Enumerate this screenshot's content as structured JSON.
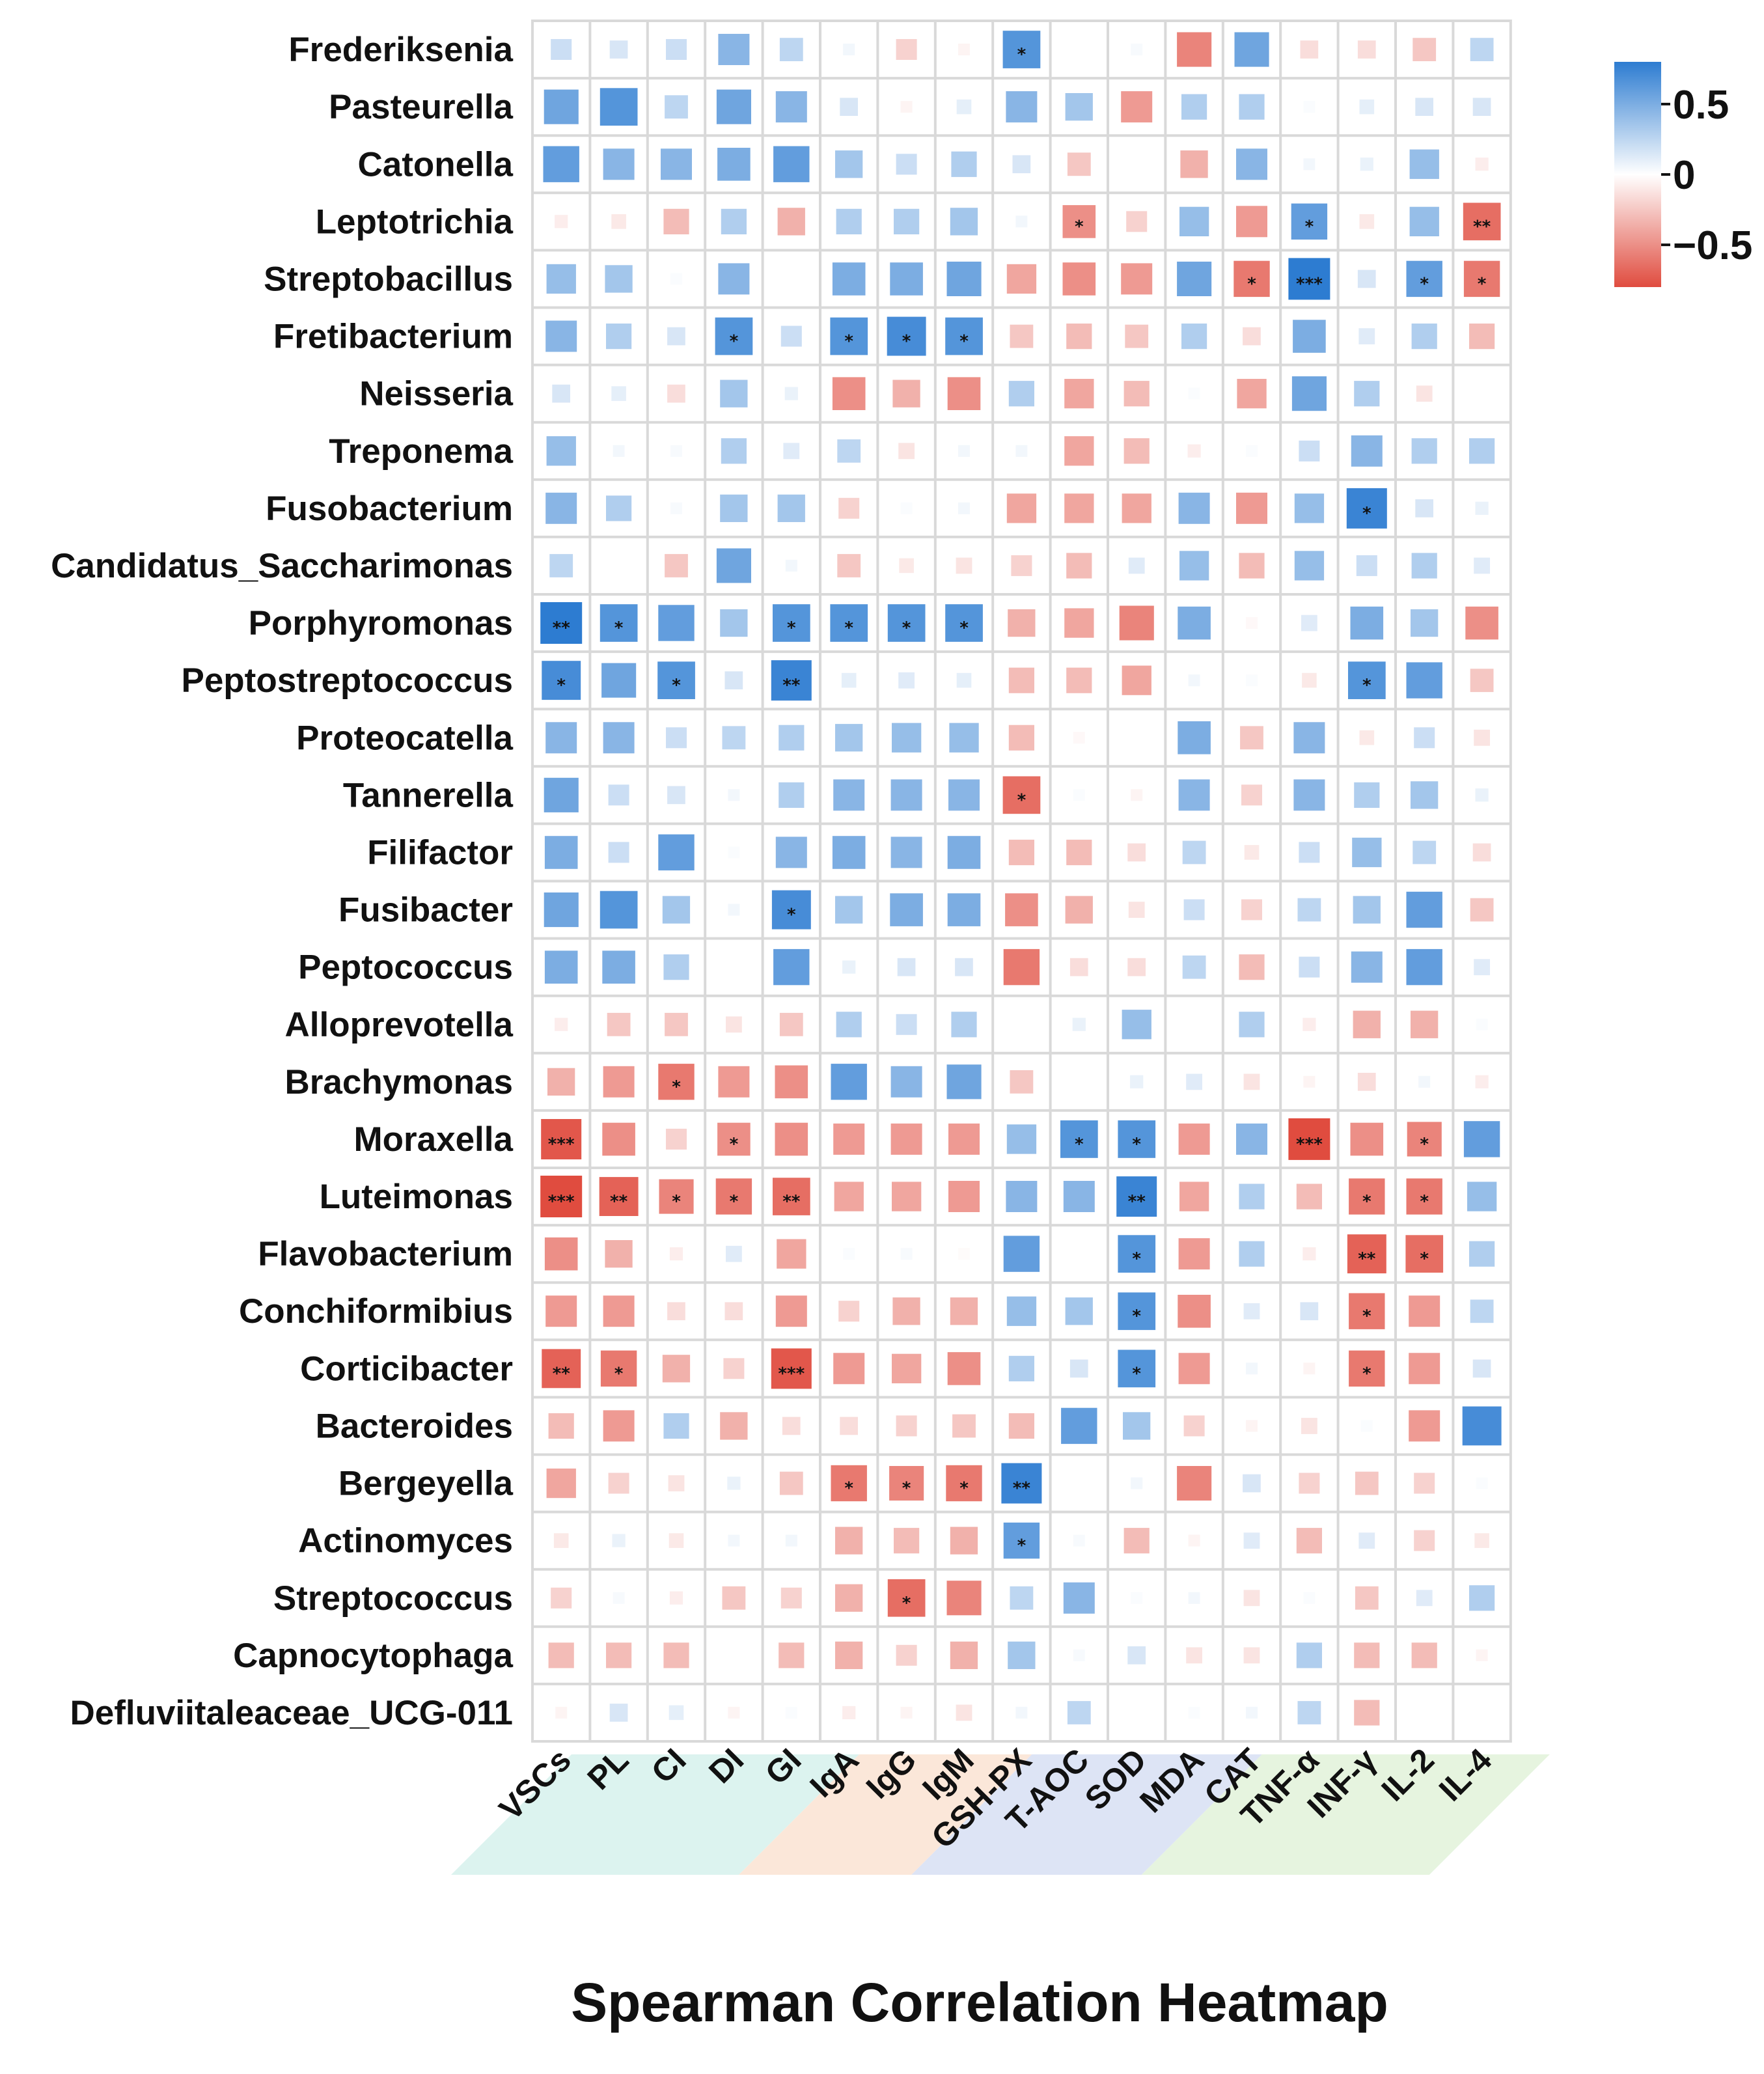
{
  "chart_data": {
    "type": "heatmap",
    "title": "Spearman Correlation Heatmap",
    "value_range": [
      -0.8,
      0.8
    ],
    "legend": {
      "ticks": [
        {
          "label": "0.5",
          "value": 0.5
        },
        {
          "label": "0",
          "value": 0
        },
        {
          "label": "−0.5",
          "value": -0.5
        }
      ],
      "colors": {
        "negative": "#e04c3f",
        "zero": "#ffffff",
        "positive": "#2d7cd1"
      }
    },
    "columns": [
      "VSCs",
      "PL",
      "CI",
      "DI",
      "GI",
      "IgA",
      "IgG",
      "IgM",
      "GSH-PX",
      "T-AOC",
      "SOD",
      "MDA",
      "CAT",
      "TNF-α",
      "INF-γ",
      "IL-2",
      "IL-4"
    ],
    "column_groups": [
      {
        "columns": [
          "VSCs",
          "PL",
          "CI",
          "DI",
          "GI"
        ],
        "color": "#dcf3ef"
      },
      {
        "columns": [
          "IgA",
          "IgG",
          "IgM"
        ],
        "color": "#fbe7d9"
      },
      {
        "columns": [
          "GSH-PX",
          "T-AOC",
          "SOD",
          "MDA"
        ],
        "color": "#dde4f5"
      },
      {
        "columns": [
          "CAT",
          "TNF-α",
          "INF-γ",
          "IL-2",
          "IL-4"
        ],
        "color": "#e6f4df"
      }
    ],
    "rows": [
      {
        "name": "Frederiksenia",
        "values": [
          0.2,
          0.15,
          0.2,
          0.45,
          0.25,
          0.05,
          -0.2,
          -0.05,
          0.65,
          0.0,
          0.03,
          -0.55,
          0.55,
          -0.15,
          -0.15,
          -0.25,
          0.25
        ],
        "sig": [
          "",
          "",
          "",
          "",
          "",
          "",
          "",
          "",
          "*",
          "",
          "",
          "",
          "",
          "",
          "",
          "",
          ""
        ]
      },
      {
        "name": "Pasteurella",
        "values": [
          0.55,
          0.65,
          0.25,
          0.55,
          0.45,
          0.15,
          -0.05,
          0.1,
          0.45,
          0.35,
          -0.45,
          0.3,
          0.3,
          0.02,
          0.1,
          0.15,
          0.15
        ],
        "sig": [
          "",
          "",
          "",
          "",
          "",
          "",
          "",
          "",
          "",
          "",
          "",
          "",
          "",
          "",
          "",
          "",
          ""
        ]
      },
      {
        "name": "Catonella",
        "values": [
          0.6,
          0.45,
          0.45,
          0.5,
          0.6,
          0.35,
          0.2,
          0.3,
          0.15,
          -0.25,
          0.0,
          -0.35,
          0.45,
          0.05,
          0.08,
          0.4,
          -0.08
        ],
        "sig": [
          "",
          "",
          "",
          "",
          "",
          "",
          "",
          "",
          "",
          "",
          "",
          "",
          "",
          "",
          "",
          "",
          ""
        ]
      },
      {
        "name": "Leptotrichia",
        "values": [
          -0.08,
          -0.1,
          -0.3,
          0.3,
          -0.35,
          0.3,
          0.3,
          0.35,
          0.05,
          -0.5,
          -0.2,
          0.4,
          -0.45,
          0.6,
          -0.1,
          0.4,
          -0.65
        ],
        "sig": [
          "",
          "",
          "",
          "",
          "",
          "",
          "",
          "",
          "",
          "*",
          "",
          "",
          "",
          "*",
          "",
          "",
          "**"
        ]
      },
      {
        "name": "Streptobacillus",
        "values": [
          0.4,
          0.35,
          0.02,
          0.45,
          0.0,
          0.5,
          0.5,
          0.55,
          -0.4,
          -0.5,
          -0.45,
          0.55,
          -0.6,
          0.85,
          0.15,
          0.6,
          -0.6
        ],
        "sig": [
          "",
          "",
          "",
          "",
          "",
          "",
          "",
          "",
          "",
          "",
          "",
          "",
          "*",
          "***",
          "",
          "*",
          "*"
        ]
      },
      {
        "name": "Fretibacterium",
        "values": [
          0.45,
          0.3,
          0.15,
          0.65,
          0.2,
          0.65,
          0.7,
          0.65,
          -0.25,
          -0.3,
          -0.25,
          0.3,
          -0.15,
          0.5,
          0.12,
          0.3,
          -0.3
        ],
        "sig": [
          "",
          "",
          "",
          "*",
          "",
          "*",
          "*",
          "*",
          "",
          "",
          "",
          "",
          "",
          "",
          "",
          "",
          ""
        ]
      },
      {
        "name": "Neisseria",
        "values": [
          0.15,
          0.1,
          -0.15,
          0.35,
          0.08,
          -0.5,
          -0.35,
          -0.5,
          0.3,
          -0.4,
          -0.3,
          0.02,
          -0.4,
          0.55,
          0.3,
          -0.12,
          0.0
        ],
        "sig": [
          "",
          "",
          "",
          "",
          "",
          "",
          "",
          "",
          "",
          "",
          "",
          "",
          "",
          "",
          "",
          "",
          ""
        ]
      },
      {
        "name": "Treponema",
        "values": [
          0.4,
          0.05,
          0.03,
          0.3,
          0.12,
          0.25,
          -0.12,
          0.05,
          0.05,
          -0.4,
          -0.3,
          -0.08,
          0.02,
          0.2,
          0.45,
          0.3,
          0.3
        ],
        "sig": [
          "",
          "",
          "",
          "",
          "",
          "",
          "",
          "",
          "",
          "",
          "",
          "",
          "",
          "",
          "",
          "",
          ""
        ]
      },
      {
        "name": "Fusobacterium",
        "values": [
          0.45,
          0.3,
          0.03,
          0.35,
          0.35,
          -0.2,
          0.02,
          0.05,
          -0.4,
          -0.4,
          -0.4,
          0.45,
          -0.45,
          0.4,
          0.75,
          0.15,
          0.08
        ],
        "sig": [
          "",
          "",
          "",
          "",
          "",
          "",
          "",
          "",
          "",
          "",
          "",
          "",
          "",
          "",
          "*",
          "",
          ""
        ]
      },
      {
        "name": "Candidatus_Saccharimonas",
        "values": [
          0.25,
          0.0,
          -0.25,
          0.55,
          0.05,
          -0.25,
          -0.1,
          -0.12,
          -0.2,
          -0.3,
          0.12,
          0.4,
          -0.3,
          0.4,
          0.2,
          0.3,
          0.12
        ],
        "sig": [
          "",
          "",
          "",
          "",
          "",
          "",
          "",
          "",
          "",
          "",
          "",
          "",
          "",
          "",
          "",
          "",
          ""
        ]
      },
      {
        "name": "Porphyromonas",
        "values": [
          0.8,
          0.65,
          0.6,
          0.35,
          0.65,
          0.65,
          0.65,
          0.65,
          -0.35,
          -0.4,
          -0.55,
          0.5,
          -0.03,
          0.12,
          0.5,
          0.35,
          -0.5
        ],
        "sig": [
          "**",
          "*",
          "",
          "",
          "*",
          "*",
          "*",
          "*",
          "",
          "",
          "",
          "",
          "",
          "",
          "",
          "",
          ""
        ]
      },
      {
        "name": "Peptostreptococcus",
        "values": [
          0.7,
          0.55,
          0.65,
          0.15,
          0.75,
          0.1,
          0.12,
          0.1,
          -0.3,
          -0.3,
          -0.4,
          0.05,
          0.02,
          -0.1,
          0.65,
          0.6,
          -0.25
        ],
        "sig": [
          "*",
          "",
          "*",
          "",
          "**",
          "",
          "",
          "",
          "",
          "",
          "",
          "",
          "",
          "",
          "*",
          "",
          ""
        ]
      },
      {
        "name": "Proteocatella",
        "values": [
          0.45,
          0.45,
          0.2,
          0.25,
          0.3,
          0.35,
          0.4,
          0.4,
          -0.3,
          -0.03,
          0.0,
          0.5,
          -0.25,
          0.45,
          -0.1,
          0.2,
          -0.12
        ],
        "sig": [
          "",
          "",
          "",
          "",
          "",
          "",
          "",
          "",
          "",
          "",
          "",
          "",
          "",
          "",
          "",
          "",
          ""
        ]
      },
      {
        "name": "Tannerella",
        "values": [
          0.55,
          0.2,
          0.15,
          0.05,
          0.3,
          0.45,
          0.45,
          0.45,
          -0.65,
          0.02,
          -0.05,
          0.45,
          -0.2,
          0.45,
          0.3,
          0.35,
          0.08
        ],
        "sig": [
          "",
          "",
          "",
          "",
          "",
          "",
          "",
          "",
          "*",
          "",
          "",
          "",
          "",
          "",
          "",
          "",
          ""
        ]
      },
      {
        "name": "Filifactor",
        "values": [
          0.5,
          0.2,
          0.6,
          0.02,
          0.45,
          0.5,
          0.45,
          0.5,
          -0.3,
          -0.3,
          -0.15,
          0.25,
          -0.1,
          0.2,
          0.4,
          0.25,
          -0.15
        ],
        "sig": [
          "",
          "",
          "",
          "",
          "",
          "",
          "",
          "",
          "",
          "",
          "",
          "",
          "",
          "",
          "",
          "",
          ""
        ]
      },
      {
        "name": "Fusibacter",
        "values": [
          0.55,
          0.65,
          0.35,
          0.05,
          0.7,
          0.35,
          0.5,
          0.5,
          -0.5,
          -0.35,
          -0.12,
          0.2,
          -0.2,
          0.25,
          0.35,
          0.6,
          -0.25
        ],
        "sig": [
          "",
          "",
          "",
          "",
          "*",
          "",
          "",
          "",
          "",
          "",
          "",
          "",
          "",
          "",
          "",
          "",
          ""
        ]
      },
      {
        "name": "Peptococcus",
        "values": [
          0.5,
          0.5,
          0.3,
          0.0,
          0.6,
          0.08,
          0.15,
          0.15,
          -0.6,
          -0.15,
          -0.15,
          0.25,
          -0.3,
          0.2,
          0.45,
          0.6,
          0.12
        ],
        "sig": [
          "",
          "",
          "",
          "",
          "",
          "",
          "",
          "",
          "",
          "",
          "",
          "",
          "",
          "",
          "",
          "",
          ""
        ]
      },
      {
        "name": "Alloprevotella",
        "values": [
          -0.08,
          -0.25,
          -0.25,
          -0.12,
          -0.25,
          0.3,
          0.2,
          0.3,
          0.0,
          0.08,
          0.4,
          0.0,
          0.3,
          -0.08,
          -0.35,
          -0.35,
          0.02
        ],
        "sig": [
          "",
          "",
          "",
          "",
          "",
          "",
          "",
          "",
          "",
          "",
          "",
          "",
          "",
          "",
          "",
          "",
          ""
        ]
      },
      {
        "name": "Brachymonas",
        "values": [
          -0.35,
          -0.45,
          -0.6,
          -0.45,
          -0.5,
          0.6,
          0.45,
          0.55,
          -0.25,
          0.0,
          0.08,
          0.12,
          -0.12,
          -0.05,
          -0.15,
          0.05,
          -0.08
        ],
        "sig": [
          "",
          "",
          "*",
          "",
          "",
          "",
          "",
          "",
          "",
          "",
          "",
          "",
          "",
          "",
          "",
          "",
          ""
        ]
      },
      {
        "name": "Moraxella",
        "values": [
          -0.75,
          -0.5,
          -0.2,
          -0.5,
          -0.5,
          -0.45,
          -0.45,
          -0.45,
          0.4,
          0.65,
          0.65,
          -0.45,
          0.45,
          -0.8,
          -0.5,
          -0.55,
          0.6
        ],
        "sig": [
          "***",
          "",
          "",
          "*",
          "",
          "",
          "",
          "",
          "",
          "*",
          "*",
          "",
          "",
          "***",
          "",
          "*",
          ""
        ]
      },
      {
        "name": "Luteimonas",
        "values": [
          -0.8,
          -0.7,
          -0.55,
          -0.6,
          -0.65,
          -0.4,
          -0.4,
          -0.45,
          0.45,
          0.45,
          0.75,
          -0.4,
          0.3,
          -0.3,
          -0.6,
          -0.6,
          0.4
        ],
        "sig": [
          "***",
          "**",
          "*",
          "*",
          "**",
          "",
          "",
          "",
          "",
          "",
          "**",
          "",
          "",
          "",
          "*",
          "*",
          ""
        ]
      },
      {
        "name": "Flavobacterium",
        "values": [
          -0.5,
          -0.35,
          -0.08,
          0.12,
          -0.4,
          0.02,
          0.03,
          -0.02,
          0.6,
          0.0,
          0.65,
          -0.45,
          0.3,
          -0.08,
          -0.7,
          -0.65,
          0.3
        ],
        "sig": [
          "",
          "",
          "",
          "",
          "",
          "",
          "",
          "",
          "",
          "",
          "*",
          "",
          "",
          "",
          "**",
          "*",
          ""
        ]
      },
      {
        "name": "Conchiformibius",
        "values": [
          -0.45,
          -0.45,
          -0.15,
          -0.15,
          -0.45,
          -0.2,
          -0.35,
          -0.35,
          0.4,
          0.35,
          0.65,
          -0.5,
          0.12,
          0.15,
          -0.6,
          -0.45,
          0.25
        ],
        "sig": [
          "",
          "",
          "",
          "",
          "",
          "",
          "",
          "",
          "",
          "",
          "*",
          "",
          "",
          "",
          "*",
          "",
          ""
        ]
      },
      {
        "name": "Corticibacter",
        "values": [
          -0.7,
          -0.6,
          -0.35,
          -0.2,
          -0.75,
          -0.45,
          -0.4,
          -0.5,
          0.3,
          0.15,
          0.65,
          -0.45,
          0.05,
          -0.05,
          -0.6,
          -0.45,
          0.15
        ],
        "sig": [
          "**",
          "*",
          "",
          "",
          "***",
          "",
          "",
          "",
          "",
          "",
          "*",
          "",
          "",
          "",
          "*",
          "",
          ""
        ]
      },
      {
        "name": "Bacteroides",
        "values": [
          -0.3,
          -0.45,
          0.3,
          -0.35,
          -0.15,
          -0.15,
          -0.2,
          -0.25,
          -0.3,
          0.6,
          0.35,
          -0.2,
          -0.05,
          -0.12,
          0.02,
          -0.45,
          0.7
        ],
        "sig": [
          "",
          "",
          "",
          "",
          "",
          "",
          "",
          "",
          "",
          "",
          "",
          "",
          "",
          "",
          "",
          "",
          ""
        ]
      },
      {
        "name": "Bergeyella",
        "values": [
          -0.4,
          -0.2,
          -0.12,
          0.08,
          -0.25,
          -0.6,
          -0.55,
          -0.6,
          0.75,
          0.0,
          0.05,
          -0.55,
          0.15,
          -0.2,
          -0.25,
          -0.2,
          0.02
        ],
        "sig": [
          "",
          "",
          "",
          "",
          "",
          "*",
          "*",
          "*",
          "**",
          "",
          "",
          "",
          "",
          "",
          "",
          "",
          ""
        ]
      },
      {
        "name": "Actinomyces",
        "values": [
          -0.1,
          0.08,
          -0.1,
          0.05,
          0.05,
          -0.35,
          -0.3,
          -0.35,
          0.6,
          0.03,
          -0.3,
          -0.05,
          0.12,
          -0.3,
          0.12,
          -0.2,
          -0.1
        ],
        "sig": [
          "",
          "",
          "",
          "",
          "",
          "",
          "",
          "",
          "*",
          "",
          "",
          "",
          "",
          "",
          "",
          "",
          ""
        ]
      },
      {
        "name": "Streptococcus",
        "values": [
          -0.2,
          0.03,
          -0.08,
          -0.25,
          -0.2,
          -0.35,
          -0.65,
          -0.55,
          0.25,
          0.45,
          0.02,
          0.05,
          -0.12,
          0.02,
          -0.25,
          0.12,
          0.3
        ],
        "sig": [
          "",
          "",
          "",
          "",
          "",
          "",
          "*",
          "",
          "",
          "",
          "",
          "",
          "",
          "",
          "",
          "",
          ""
        ]
      },
      {
        "name": "Capnocytophaga",
        "values": [
          -0.3,
          -0.3,
          -0.3,
          0.0,
          -0.3,
          -0.35,
          -0.2,
          -0.35,
          0.35,
          0.03,
          0.15,
          -0.12,
          -0.12,
          0.3,
          -0.3,
          -0.3,
          -0.05
        ],
        "sig": [
          "",
          "",
          "",
          "",
          "",
          "",
          "",
          "",
          "",
          "",
          "",
          "",
          "",
          "",
          "",
          "",
          ""
        ]
      },
      {
        "name": "Defluviitaleaceae_UCG-011",
        "values": [
          -0.05,
          0.15,
          0.1,
          -0.05,
          0.02,
          -0.08,
          -0.05,
          -0.12,
          0.05,
          0.25,
          0.0,
          0.02,
          0.05,
          0.25,
          -0.3,
          0.0,
          0.0
        ],
        "sig": [
          "",
          "",
          "",
          "",
          "",
          "",
          "",
          "",
          "",
          "",
          "",
          "",
          "",
          "",
          "",
          "",
          ""
        ]
      }
    ]
  }
}
